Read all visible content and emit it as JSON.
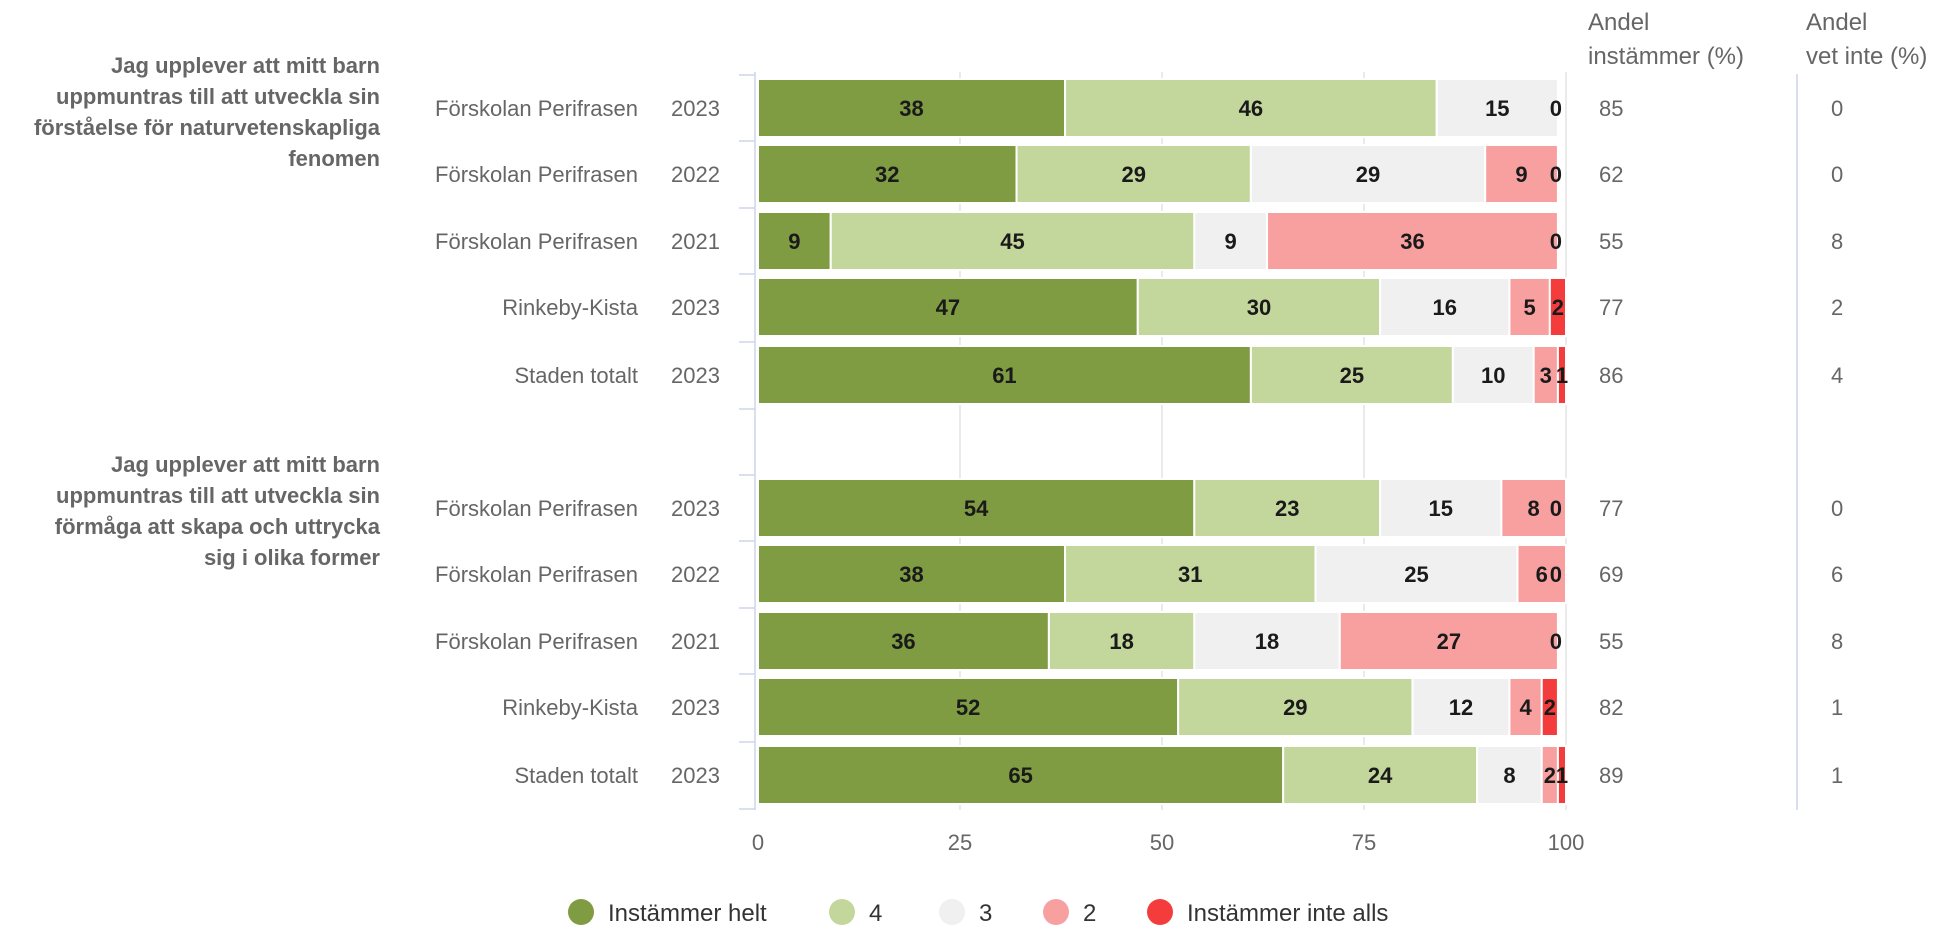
{
  "chart_data": {
    "type": "bar",
    "orientation": "horizontal",
    "stacked": true,
    "xlim": [
      0,
      100
    ],
    "xticks": [
      "0",
      "25",
      "50",
      "75",
      "100"
    ],
    "grid": true,
    "legend_placement": "bottom",
    "column_headers": {
      "agree": [
        "Andel",
        "instämmer (%)"
      ],
      "dont_know": [
        "Andel",
        "vet inte (%)"
      ]
    },
    "series": [
      {
        "name": "Instämmer helt",
        "color": "#7f9c43"
      },
      {
        "name": "4",
        "color": "#c3d69b"
      },
      {
        "name": "3",
        "color": "#f0f0f0"
      },
      {
        "name": "2",
        "color": "#f8a0a0"
      },
      {
        "name": "Instämmer inte alls",
        "color": "#f53c3c"
      }
    ],
    "groups": [
      {
        "question": [
          "Jag upplever att mitt barn",
          "uppmuntras till att utveckla sin",
          "förståelse för naturvetenskapliga",
          "fenomen"
        ],
        "rows": [
          {
            "unit": "Förskolan Perifrasen",
            "year": "2023",
            "values": [
              38,
              46,
              15,
              0,
              0
            ],
            "labels": [
              "38",
              "46",
              "15",
              "",
              "0"
            ],
            "agree": "85",
            "dont_know": "0"
          },
          {
            "unit": "Förskolan Perifrasen",
            "year": "2022",
            "values": [
              32,
              29,
              29,
              9,
              0
            ],
            "labels": [
              "32",
              "29",
              "29",
              "9",
              "0"
            ],
            "agree": "62",
            "dont_know": "0"
          },
          {
            "unit": "Förskolan Perifrasen",
            "year": "2021",
            "values": [
              9,
              45,
              9,
              36,
              0
            ],
            "labels": [
              "9",
              "45",
              "9",
              "36",
              "0"
            ],
            "agree": "55",
            "dont_know": "8"
          },
          {
            "unit": "Rinkeby-Kista",
            "year": "2023",
            "values": [
              47,
              30,
              16,
              5,
              2
            ],
            "labels": [
              "47",
              "30",
              "16",
              "5",
              "2"
            ],
            "agree": "77",
            "dont_know": "2"
          },
          {
            "unit": "Staden totalt",
            "year": "2023",
            "values": [
              61,
              25,
              10,
              3,
              1
            ],
            "labels": [
              "61",
              "25",
              "10",
              "3",
              "1"
            ],
            "agree": "86",
            "dont_know": "4"
          }
        ]
      },
      {
        "question": [
          "Jag upplever att mitt barn",
          "uppmuntras till att utveckla sin",
          "förmåga att skapa och uttrycka",
          "sig i olika former"
        ],
        "rows": [
          {
            "unit": "Förskolan Perifrasen",
            "year": "2023",
            "values": [
              54,
              23,
              15,
              8,
              0
            ],
            "labels": [
              "54",
              "23",
              "15",
              "8",
              "0"
            ],
            "agree": "77",
            "dont_know": "0"
          },
          {
            "unit": "Förskolan Perifrasen",
            "year": "2022",
            "values": [
              38,
              31,
              25,
              6,
              0
            ],
            "labels": [
              "38",
              "31",
              "25",
              "6",
              "0"
            ],
            "agree": "69",
            "dont_know": "6"
          },
          {
            "unit": "Förskolan Perifrasen",
            "year": "2021",
            "values": [
              36,
              18,
              18,
              27,
              0
            ],
            "labels": [
              "36",
              "18",
              "18",
              "27",
              "0"
            ],
            "agree": "55",
            "dont_know": "8"
          },
          {
            "unit": "Rinkeby-Kista",
            "year": "2023",
            "values": [
              52,
              29,
              12,
              4,
              2
            ],
            "labels": [
              "52",
              "29",
              "12",
              "4",
              "2"
            ],
            "agree": "82",
            "dont_know": "1"
          },
          {
            "unit": "Staden totalt",
            "year": "2023",
            "values": [
              65,
              24,
              8,
              2,
              1
            ],
            "labels": [
              "65",
              "24",
              "8",
              "2",
              "1"
            ],
            "agree": "89",
            "dont_know": "1"
          }
        ]
      }
    ]
  }
}
